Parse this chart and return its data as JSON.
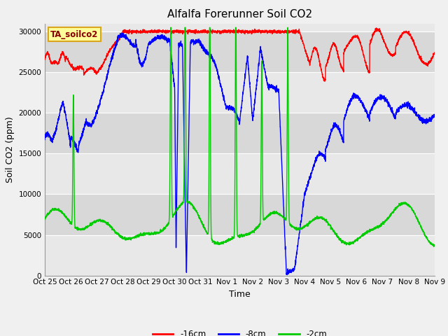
{
  "title": "Alfalfa Forerunner Soil CO2",
  "xlabel": "Time",
  "ylabel": "Soil CO2 (ppm)",
  "ylim": [
    0,
    31000
  ],
  "yticks": [
    0,
    5000,
    10000,
    15000,
    20000,
    25000,
    30000
  ],
  "annotation_text": "TA_soilco2",
  "annotation_color": "#8B0000",
  "annotation_bg": "#FFFF99",
  "annotation_border": "#DAA520",
  "line_red_color": "#FF0000",
  "line_blue_color": "#0000FF",
  "line_green_color": "#00CC00",
  "legend_labels": [
    "-16cm",
    "-8cm",
    "-2cm"
  ],
  "fig_bg_color": "#F0F0F0",
  "band_light": "#E8E8E8",
  "band_dark": "#D8D8D8",
  "grid_color": "#FFFFFF",
  "x_ticks_labels": [
    "Oct 25",
    "Oct 26",
    "Oct 27",
    "Oct 28",
    "Oct 29",
    "Oct 30",
    "Oct 31",
    "Nov 1",
    "Nov 2",
    "Nov 3",
    "Nov 4",
    "Nov 5",
    "Nov 6",
    "Nov 7",
    "Nov 8",
    "Nov 9"
  ],
  "title_fontsize": 11,
  "axis_label_fontsize": 9,
  "tick_fontsize": 7.5,
  "legend_fontsize": 8.5,
  "linewidth": 1.0
}
